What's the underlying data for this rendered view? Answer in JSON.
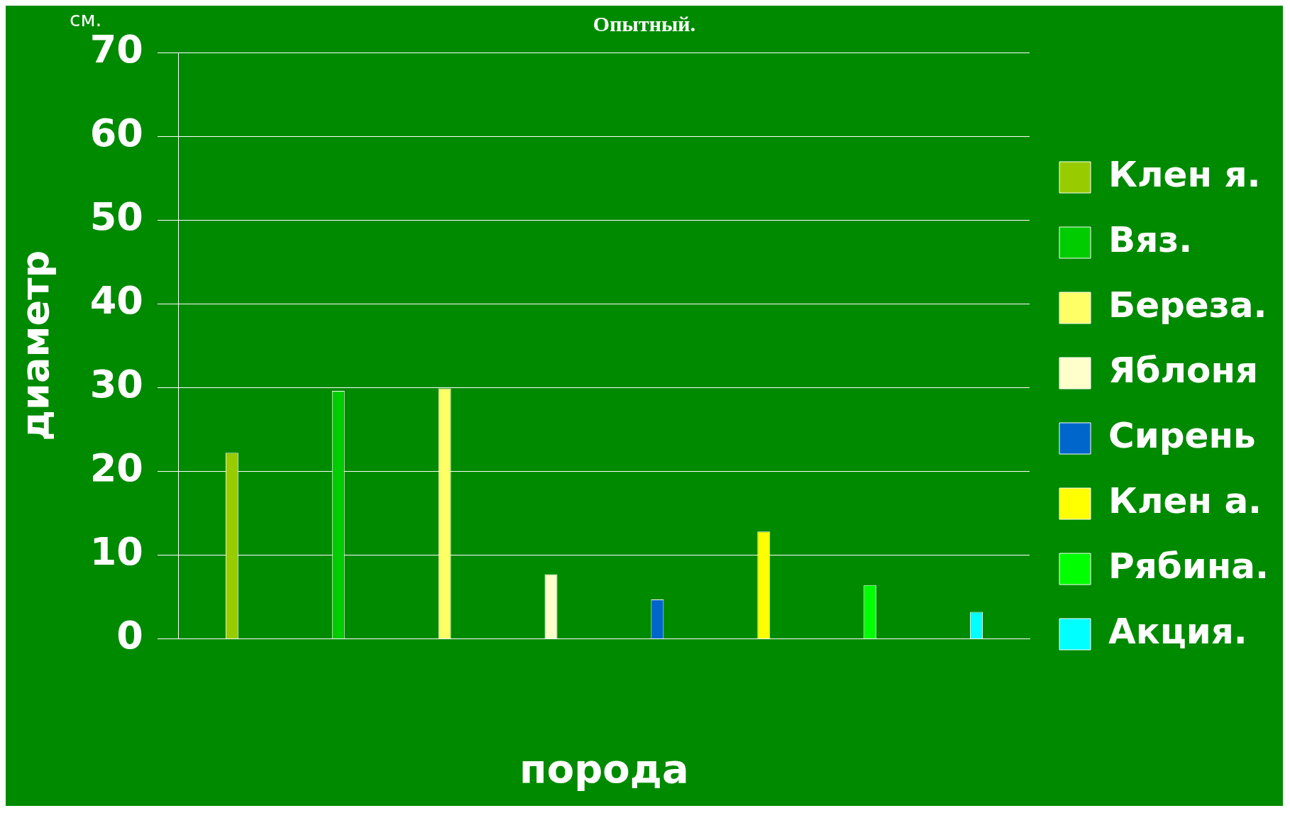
{
  "chart_data": {
    "type": "bar",
    "title": "Опытный.",
    "xlabel": "порода",
    "ylabel": "диаметр",
    "annotations": [
      "см."
    ],
    "categories": [
      null
    ],
    "series": [
      {
        "name": "Клен я.",
        "color": "#99cc00",
        "values": [
          22.2
        ]
      },
      {
        "name": "Вяз.",
        "color": "#00cc00",
        "values": [
          29.6
        ]
      },
      {
        "name": "Береза.",
        "color": "#ffff66",
        "values": [
          29.9
        ]
      },
      {
        "name": "Яблоня",
        "color": "#ffffcc",
        "values": [
          7.7
        ]
      },
      {
        "name": "Сирень",
        "color": "#0066cc",
        "values": [
          4.7
        ]
      },
      {
        "name": "Клен а.",
        "color": "#ffff00",
        "values": [
          12.8
        ]
      },
      {
        "name": "Рябина.",
        "color": "#00ff00",
        "values": [
          6.4
        ]
      },
      {
        "name": "Акция.",
        "color": "#00ffff",
        "values": [
          3.2
        ]
      }
    ],
    "ylim": [
      0,
      70
    ],
    "yticks": [
      0,
      10,
      20,
      30,
      40,
      50,
      60,
      70
    ],
    "grid": "y",
    "legend": "right"
  }
}
